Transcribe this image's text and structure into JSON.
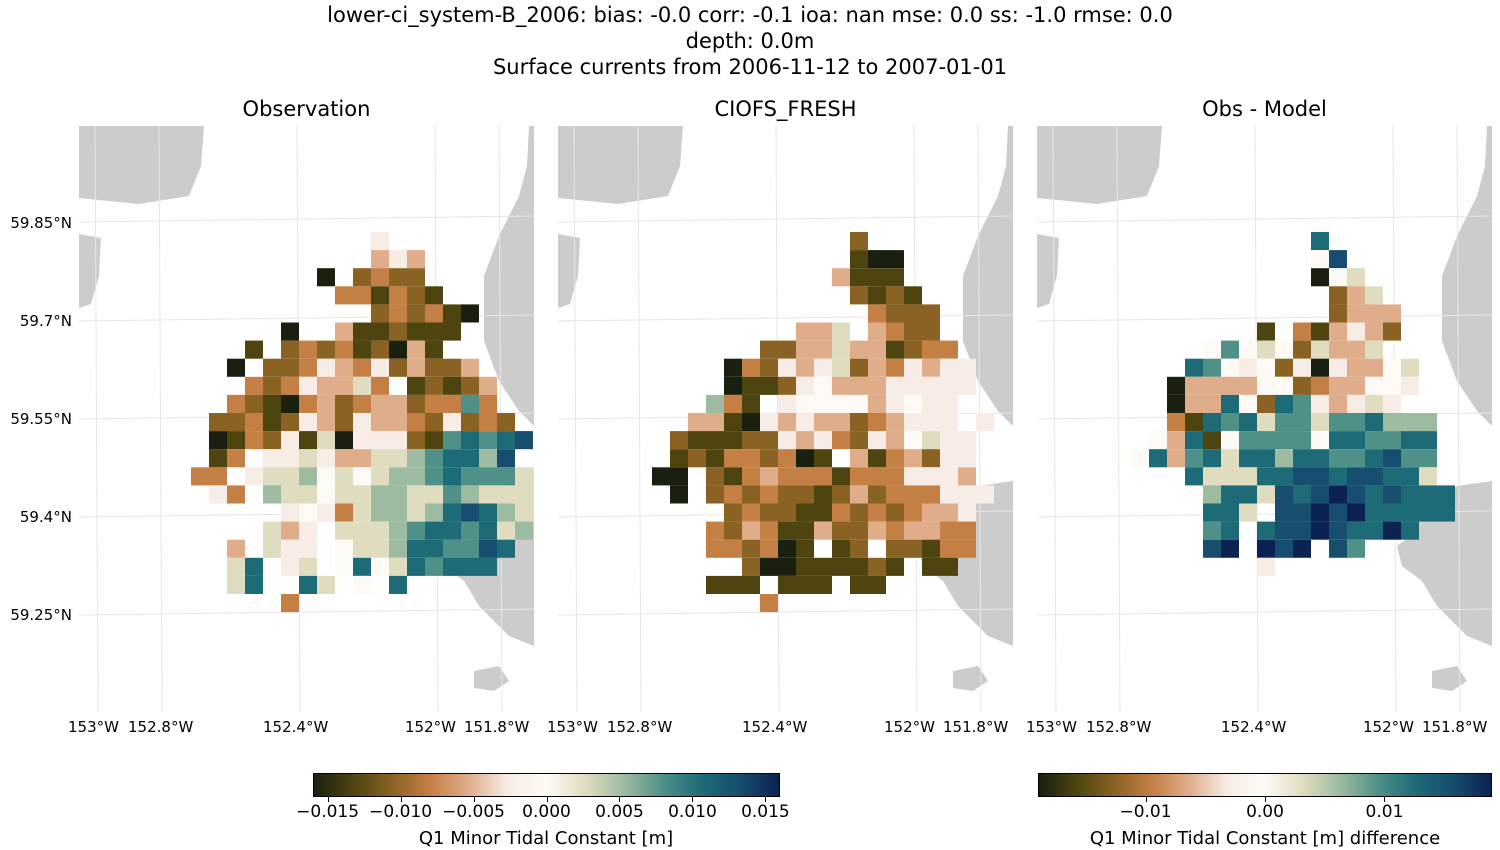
{
  "header": {
    "line1": "lower-ci_system-B_2006: bias: -0.0  corr: -0.1  ioa: nan  mse: 0.0  ss: -1.0  rmse: 0.0",
    "line2": "depth: 0.0m",
    "line3": "Surface currents from 2006-11-12 to 2007-01-01"
  },
  "panels": [
    {
      "title": "Observation"
    },
    {
      "title": "CIOFS_FRESH"
    },
    {
      "title": "Obs - Model"
    }
  ],
  "lat_labels": [
    "59.85°N",
    "59.7°N",
    "59.55°N",
    "59.4°N",
    "59.25°N"
  ],
  "lon_labels": [
    "153°W",
    "152.8°W",
    "152.4°W",
    "152°W",
    "151.8°W"
  ],
  "colorbar_main": {
    "label": "Q1 Minor Tidal Constant [m]",
    "ticks": [
      "−0.015",
      "−0.010",
      "−0.005",
      "0.000",
      "0.005",
      "0.010",
      "0.015"
    ],
    "range": [
      -0.016,
      0.016
    ]
  },
  "colorbar_diff": {
    "label": "Q1 Minor Tidal Constant [m] difference",
    "ticks": [
      "−0.01",
      "0.00",
      "0.01"
    ],
    "range": [
      -0.019,
      0.019
    ]
  },
  "colors": {
    "land": "#cccccc",
    "grid": "#e6e6e6",
    "cmap": [
      "#1a2010",
      "#4d4410",
      "#8a6224",
      "#c47f45",
      "#e0ad8b",
      "#f7ece6",
      "#fdfaf6",
      "#e0dcc0",
      "#9cbba0",
      "#4f9088",
      "#1e6b78",
      "#174d6e",
      "#0c2252"
    ]
  },
  "grid_rows": {
    "observation": [
      "...........f........",
      "...........efe......",
      "........a.cdcc......",
      ".........ddbdcb.....",
      "...........cdcdba...",
      "......a..ebbcbbb....",
      "....b.cdcdbcaeb....",
      "...a.ccdfedfcecce...",
      "....dcdfeehd.bcbce..",
      "...dcbadecdeecddjd..",
      "..ccdbcfecfeedcfcdc.",
      "..abdcfbhafffcbjkjkl",
      "..bd.ffhfeehhijkkil.",
      ".dd.fhhighghiijkjjjhh",
      "..fd.ihhghhiihhjihhhh",
      "......fgfdhiihiklkihhj",
      ".....hef.hhhijkkjkhi",
      "...e.hff.ghhikkjjlk.",
      "...hk.fh.gkghkjkkk..",
      "...hk..kh.g.k.......",
      "......d............."
    ],
    "model": [
      "...........c........",
      "...........baa......",
      "..........ebbb......",
      "...........cbcb.....",
      "............dccc....",
      "........eeh.edcc....",
      "......cceeheebcdd....",
      "....adcfefhcedfeff...",
      "....abbcfgeeefffff...",
      "...idb.fggggefgff....",
      "..eebafefeecdefff.f..",
      ".cbbbccfefdcfeghff...",
      ".bcbddcdab.ebdecff...",
      "aa.cbdedddbdddfffe...",
      ".a.cdcdccbcecdddfff..",
      "....cdccbbdcdcdeef...",
      "...dcedbbeccedeedd...",
      "...ddcdab.bc.ccbdd...",
      ".....caabbbbcb.bb....",
      "...bbb.bbb.bb........",
      "......d.............."
    ],
    "diff": [
      "..........k.........",
      "..........gln.......",
      "..........agh.......",
      "...........ceh......",
      "...........ceee.....",
      ".......b.dbefec.....",
      "....gjghgcheeh......",
      "...kjgfgcfafeegh....",
      "..aeeeeggcdeeggf....",
      "..aeekgckjfefhf.....",
      "..dbkjkhjjhjjkiii...",
      ".gekbgjjjjgkkjjkk....",
      "gkejkhkkikkjjkljj...",
      "...khhhkkllkllkkh....",
      "....ikkhlklmlklkkk...",
      "....kkh.llmlmkkkkk...",
      "....jk.kllmlkkmk.....",
      "....lm.mlm.lj.......",
      ".......f............."
    ]
  }
}
